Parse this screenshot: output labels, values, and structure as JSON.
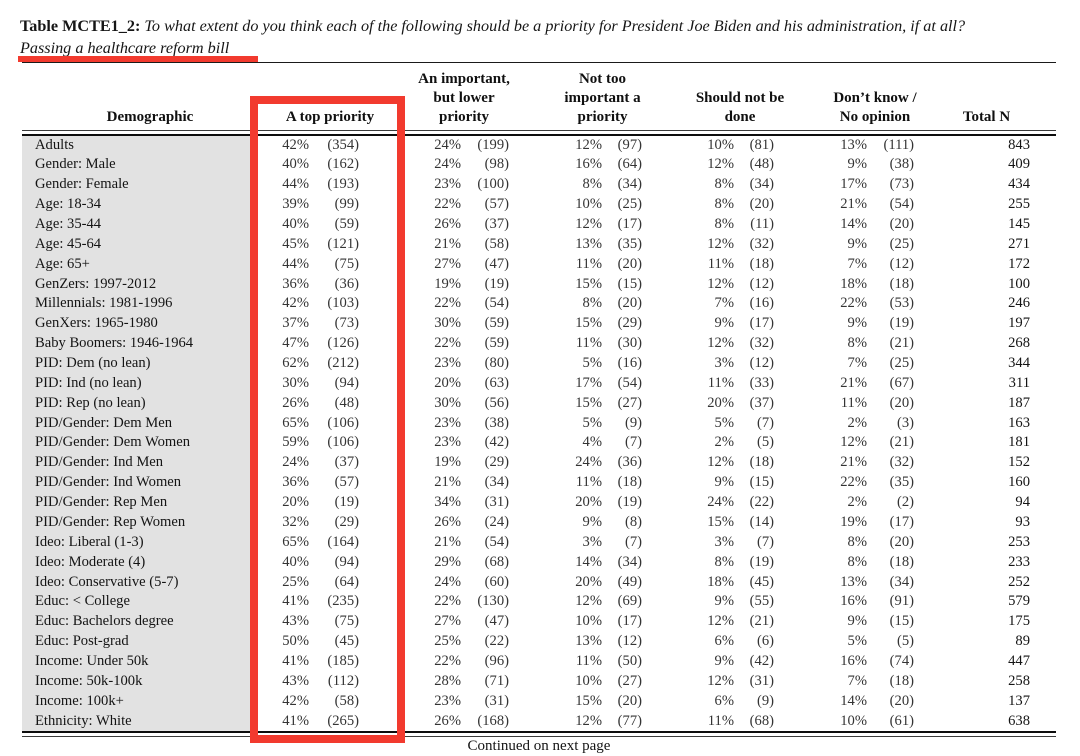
{
  "title": {
    "label": "Table MCTE1_2:",
    "question": "To what extent do you think each of the following should be a priority for President Joe Biden and his administration, if at all?",
    "subject": "Passing a healthcare reform bill"
  },
  "highlight": {
    "color": "#f23a2e",
    "highlighted_column": "A top priority",
    "underlined_text": "Passing a healthcare reform bill"
  },
  "colors": {
    "demographic_column_bg": "#e2e2e2",
    "text": "#161616",
    "rule": "#0d0d0d"
  },
  "table": {
    "columns": [
      "Demographic",
      "A top priority",
      "An important, but lower priority",
      "Not too important a priority",
      "Should not be done",
      "Don’t know / No opinion",
      "Total N"
    ],
    "rows": [
      {
        "label": "Adults",
        "values": [
          "42%",
          "(354)",
          "24%",
          "(199)",
          "12%",
          "(97)",
          "10%",
          "(81)",
          "13%",
          "(111)"
        ],
        "total": "843"
      },
      {
        "label": "Gender: Male",
        "values": [
          "40%",
          "(162)",
          "24%",
          "(98)",
          "16%",
          "(64)",
          "12%",
          "(48)",
          "9%",
          "(38)"
        ],
        "total": "409"
      },
      {
        "label": "Gender: Female",
        "values": [
          "44%",
          "(193)",
          "23%",
          "(100)",
          "8%",
          "(34)",
          "8%",
          "(34)",
          "17%",
          "(73)"
        ],
        "total": "434"
      },
      {
        "label": "Age: 18-34",
        "values": [
          "39%",
          "(99)",
          "22%",
          "(57)",
          "10%",
          "(25)",
          "8%",
          "(20)",
          "21%",
          "(54)"
        ],
        "total": "255"
      },
      {
        "label": "Age: 35-44",
        "values": [
          "40%",
          "(59)",
          "26%",
          "(37)",
          "12%",
          "(17)",
          "8%",
          "(11)",
          "14%",
          "(20)"
        ],
        "total": "145"
      },
      {
        "label": "Age: 45-64",
        "values": [
          "45%",
          "(121)",
          "21%",
          "(58)",
          "13%",
          "(35)",
          "12%",
          "(32)",
          "9%",
          "(25)"
        ],
        "total": "271"
      },
      {
        "label": "Age: 65+",
        "values": [
          "44%",
          "(75)",
          "27%",
          "(47)",
          "11%",
          "(20)",
          "11%",
          "(18)",
          "7%",
          "(12)"
        ],
        "total": "172"
      },
      {
        "label": "GenZers: 1997-2012",
        "values": [
          "36%",
          "(36)",
          "19%",
          "(19)",
          "15%",
          "(15)",
          "12%",
          "(12)",
          "18%",
          "(18)"
        ],
        "total": "100"
      },
      {
        "label": "Millennials: 1981-1996",
        "values": [
          "42%",
          "(103)",
          "22%",
          "(54)",
          "8%",
          "(20)",
          "7%",
          "(16)",
          "22%",
          "(53)"
        ],
        "total": "246"
      },
      {
        "label": "GenXers: 1965-1980",
        "values": [
          "37%",
          "(73)",
          "30%",
          "(59)",
          "15%",
          "(29)",
          "9%",
          "(17)",
          "9%",
          "(19)"
        ],
        "total": "197"
      },
      {
        "label": "Baby Boomers: 1946-1964",
        "values": [
          "47%",
          "(126)",
          "22%",
          "(59)",
          "11%",
          "(30)",
          "12%",
          "(32)",
          "8%",
          "(21)"
        ],
        "total": "268"
      },
      {
        "label": "PID: Dem (no lean)",
        "values": [
          "62%",
          "(212)",
          "23%",
          "(80)",
          "5%",
          "(16)",
          "3%",
          "(12)",
          "7%",
          "(25)"
        ],
        "total": "344"
      },
      {
        "label": "PID: Ind (no lean)",
        "values": [
          "30%",
          "(94)",
          "20%",
          "(63)",
          "17%",
          "(54)",
          "11%",
          "(33)",
          "21%",
          "(67)"
        ],
        "total": "311"
      },
      {
        "label": "PID: Rep (no lean)",
        "values": [
          "26%",
          "(48)",
          "30%",
          "(56)",
          "15%",
          "(27)",
          "20%",
          "(37)",
          "11%",
          "(20)"
        ],
        "total": "187"
      },
      {
        "label": "PID/Gender: Dem Men",
        "values": [
          "65%",
          "(106)",
          "23%",
          "(38)",
          "5%",
          "(9)",
          "5%",
          "(7)",
          "2%",
          "(3)"
        ],
        "total": "163"
      },
      {
        "label": "PID/Gender: Dem Women",
        "values": [
          "59%",
          "(106)",
          "23%",
          "(42)",
          "4%",
          "(7)",
          "2%",
          "(5)",
          "12%",
          "(21)"
        ],
        "total": "181"
      },
      {
        "label": "PID/Gender: Ind Men",
        "values": [
          "24%",
          "(37)",
          "19%",
          "(29)",
          "24%",
          "(36)",
          "12%",
          "(18)",
          "21%",
          "(32)"
        ],
        "total": "152"
      },
      {
        "label": "PID/Gender: Ind Women",
        "values": [
          "36%",
          "(57)",
          "21%",
          "(34)",
          "11%",
          "(18)",
          "9%",
          "(15)",
          "22%",
          "(35)"
        ],
        "total": "160"
      },
      {
        "label": "PID/Gender: Rep Men",
        "values": [
          "20%",
          "(19)",
          "34%",
          "(31)",
          "20%",
          "(19)",
          "24%",
          "(22)",
          "2%",
          "(2)"
        ],
        "total": "94"
      },
      {
        "label": "PID/Gender: Rep Women",
        "values": [
          "32%",
          "(29)",
          "26%",
          "(24)",
          "9%",
          "(8)",
          "15%",
          "(14)",
          "19%",
          "(17)"
        ],
        "total": "93"
      },
      {
        "label": "Ideo: Liberal (1-3)",
        "values": [
          "65%",
          "(164)",
          "21%",
          "(54)",
          "3%",
          "(7)",
          "3%",
          "(7)",
          "8%",
          "(20)"
        ],
        "total": "253"
      },
      {
        "label": "Ideo: Moderate (4)",
        "values": [
          "40%",
          "(94)",
          "29%",
          "(68)",
          "14%",
          "(34)",
          "8%",
          "(19)",
          "8%",
          "(18)"
        ],
        "total": "233"
      },
      {
        "label": "Ideo: Conservative (5-7)",
        "values": [
          "25%",
          "(64)",
          "24%",
          "(60)",
          "20%",
          "(49)",
          "18%",
          "(45)",
          "13%",
          "(34)"
        ],
        "total": "252"
      },
      {
        "label": "Educ: < College",
        "values": [
          "41%",
          "(235)",
          "22%",
          "(130)",
          "12%",
          "(69)",
          "9%",
          "(55)",
          "16%",
          "(91)"
        ],
        "total": "579"
      },
      {
        "label": "Educ: Bachelors degree",
        "values": [
          "43%",
          "(75)",
          "27%",
          "(47)",
          "10%",
          "(17)",
          "12%",
          "(21)",
          "9%",
          "(15)"
        ],
        "total": "175"
      },
      {
        "label": "Educ: Post-grad",
        "values": [
          "50%",
          "(45)",
          "25%",
          "(22)",
          "13%",
          "(12)",
          "6%",
          "(6)",
          "5%",
          "(5)"
        ],
        "total": "89"
      },
      {
        "label": "Income: Under 50k",
        "values": [
          "41%",
          "(185)",
          "22%",
          "(96)",
          "11%",
          "(50)",
          "9%",
          "(42)",
          "16%",
          "(74)"
        ],
        "total": "447"
      },
      {
        "label": "Income: 50k-100k",
        "values": [
          "43%",
          "(112)",
          "28%",
          "(71)",
          "10%",
          "(27)",
          "12%",
          "(31)",
          "7%",
          "(18)"
        ],
        "total": "258"
      },
      {
        "label": "Income: 100k+",
        "values": [
          "42%",
          "(58)",
          "23%",
          "(31)",
          "15%",
          "(20)",
          "6%",
          "(9)",
          "14%",
          "(20)"
        ],
        "total": "137"
      },
      {
        "label": "Ethnicity: White",
        "values": [
          "41%",
          "(265)",
          "26%",
          "(168)",
          "12%",
          "(77)",
          "11%",
          "(68)",
          "10%",
          "(61)"
        ],
        "total": "638"
      }
    ]
  },
  "footer": {
    "text": "Continued on next page"
  }
}
